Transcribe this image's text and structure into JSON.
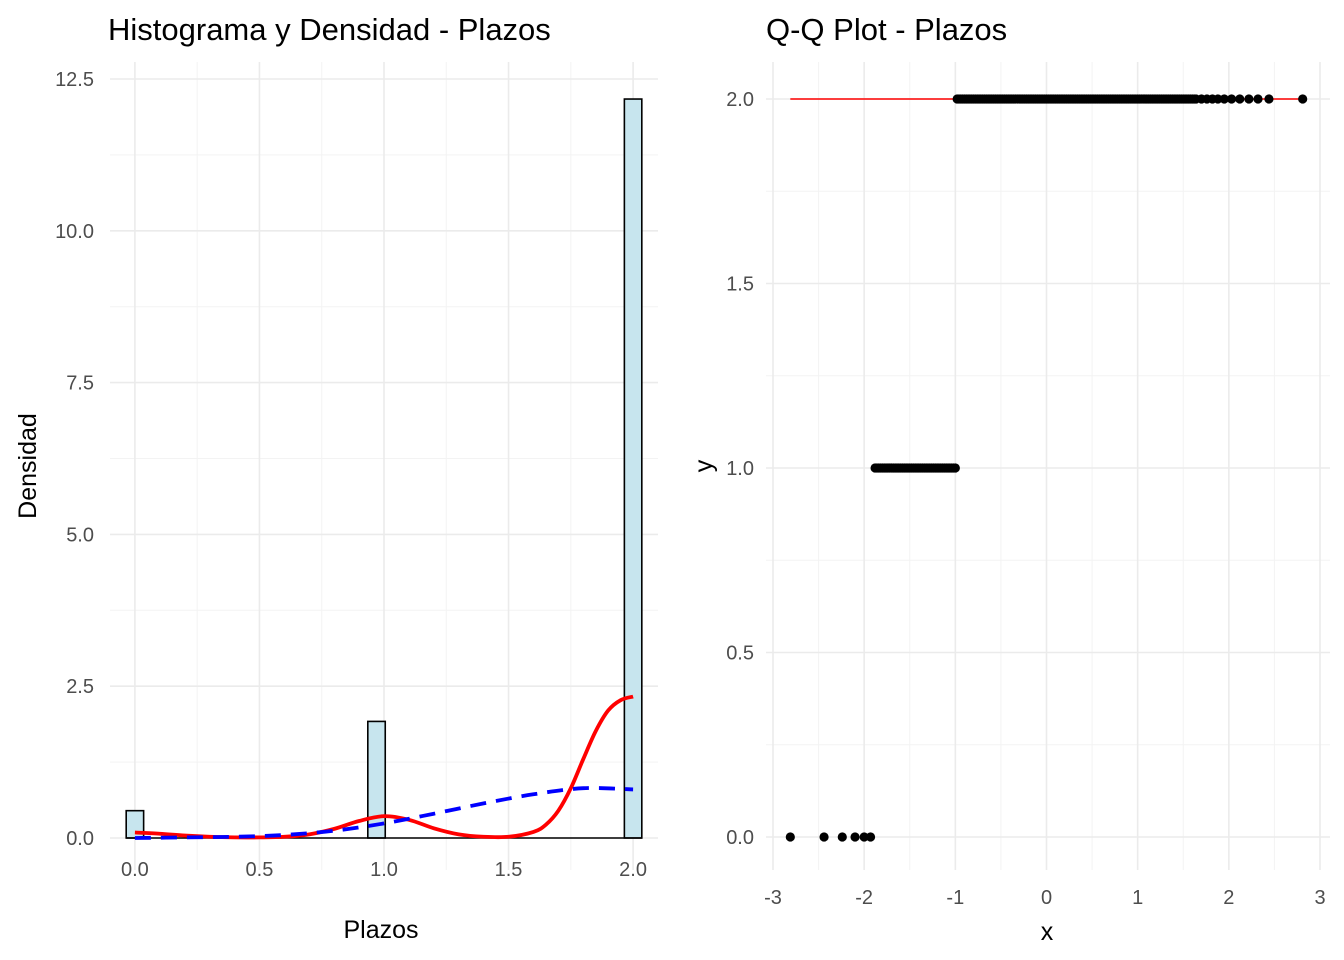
{
  "chart_data": [
    {
      "type": "bar",
      "title": "Histograma y Densidad - Plazos",
      "xlabel": "Plazos",
      "ylabel": "Densidad",
      "xlim": [
        -0.1,
        2.1
      ],
      "ylim": [
        0,
        12.5
      ],
      "x_ticks": [
        "0.0",
        "0.5",
        "1.0",
        "1.5",
        "2.0"
      ],
      "y_ticks": [
        "0.0",
        "2.5",
        "5.0",
        "7.5",
        "10.0",
        "12.5"
      ],
      "grid": true,
      "bars": [
        {
          "x0": -0.035,
          "x1": 0.035,
          "value": 0.45
        },
        {
          "x0": 0.935,
          "x1": 1.005,
          "value": 1.92
        },
        {
          "x0": 1.965,
          "x1": 2.035,
          "value": 12.17
        }
      ],
      "bar_fill": "#c7e5ee",
      "bar_stroke": "#000000",
      "series": [
        {
          "style": "solid",
          "color": "#ff0000",
          "x": [
            0.0,
            0.1,
            0.2,
            0.3,
            0.4,
            0.5,
            0.6,
            0.7,
            0.8,
            0.9,
            1.0,
            1.1,
            1.2,
            1.3,
            1.4,
            1.5,
            1.6,
            1.65,
            1.7,
            1.75,
            1.8,
            1.85,
            1.9,
            1.95,
            2.0
          ],
          "y": [
            0.09,
            0.07,
            0.04,
            0.02,
            0.01,
            0.01,
            0.02,
            0.06,
            0.15,
            0.28,
            0.36,
            0.3,
            0.16,
            0.06,
            0.02,
            0.02,
            0.1,
            0.22,
            0.45,
            0.82,
            1.3,
            1.76,
            2.1,
            2.27,
            2.33
          ]
        },
        {
          "style": "dashed",
          "color": "#0000ff",
          "x": [
            0.0,
            0.2,
            0.4,
            0.6,
            0.8,
            1.0,
            1.2,
            1.4,
            1.6,
            1.8,
            2.0
          ],
          "y": [
            0.0,
            0.01,
            0.02,
            0.05,
            0.12,
            0.24,
            0.4,
            0.57,
            0.72,
            0.82,
            0.8
          ]
        }
      ]
    },
    {
      "type": "scatter",
      "title": "Q-Q Plot - Plazos",
      "xlabel": "x",
      "ylabel": "y",
      "xlim": [
        -3.05,
        3.05
      ],
      "ylim": [
        -0.1,
        2.1
      ],
      "x_ticks": [
        "-3",
        "-2",
        "-1",
        "0",
        "1",
        "2",
        "3"
      ],
      "y_ticks": [
        "0.0",
        "0.5",
        "1.0",
        "1.5",
        "2.0"
      ],
      "grid": true,
      "point_color": "#000000",
      "points": [
        {
          "x": -2.81,
          "y": 0
        },
        {
          "x": -2.44,
          "y": 0
        },
        {
          "x": -2.24,
          "y": 0
        },
        {
          "x": -2.1,
          "y": 0
        },
        {
          "x": -2.0,
          "y": 0
        },
        {
          "x": -1.93,
          "y": 0
        }
      ],
      "point_segments": [
        {
          "x0": -1.88,
          "x1": -1.0,
          "y": 1,
          "step": 0.02
        },
        {
          "x0": -0.98,
          "x1": 1.65,
          "y": 2,
          "step": 0.02
        }
      ],
      "sparse_points": [
        {
          "x": 1.7,
          "y": 2
        },
        {
          "x": 1.76,
          "y": 2
        },
        {
          "x": 1.82,
          "y": 2
        },
        {
          "x": 1.88,
          "y": 2
        },
        {
          "x": 1.95,
          "y": 2
        },
        {
          "x": 2.03,
          "y": 2
        },
        {
          "x": 2.12,
          "y": 2
        },
        {
          "x": 2.22,
          "y": 2
        },
        {
          "x": 2.32,
          "y": 2
        },
        {
          "x": 2.44,
          "y": 2
        },
        {
          "x": 2.81,
          "y": 2
        }
      ],
      "reference_line": {
        "color": "#ff0000",
        "x0": -2.81,
        "x1": 2.81,
        "y": 2
      }
    }
  ]
}
